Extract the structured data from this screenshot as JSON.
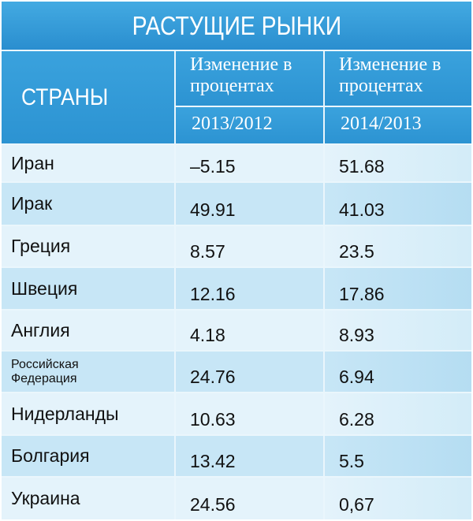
{
  "title": "РАСТУЩИЕ РЫНКИ",
  "header": {
    "countries": "СТРАНЫ",
    "change_line1": "Изменение в",
    "change_line2": "процентах",
    "year1": "2013/2012",
    "year2": "2014/2013"
  },
  "rows": [
    {
      "country": "Иран",
      "v1": "–5.15",
      "v2": "51.68"
    },
    {
      "country": "Ирак",
      "v1": "49.91",
      "v2": "41.03"
    },
    {
      "country": "Греция",
      "v1": "8.57",
      "v2": "23.5"
    },
    {
      "country": "Швеция",
      "v1": "12.16",
      "v2": "17.86"
    },
    {
      "country": "Англия",
      "v1": "4.18",
      "v2": "8.93"
    },
    {
      "country_line1": "Российская",
      "country_line2": "Федерация",
      "v1": "24.76",
      "v2": "6.94"
    },
    {
      "country": "Нидерланды",
      "v1": "10.63",
      "v2": "6.28"
    },
    {
      "country": "Болгария",
      "v1": "13.42",
      "v2": "5.5"
    },
    {
      "country": "Украина",
      "v1": "24.56",
      "v2": "0,67"
    }
  ]
}
